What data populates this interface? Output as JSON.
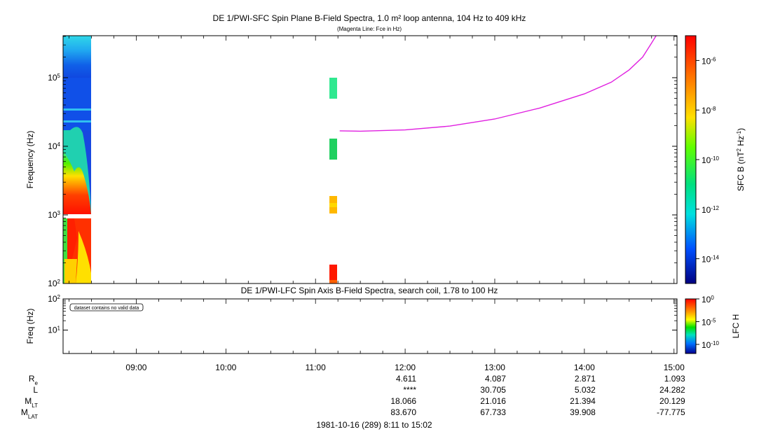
{
  "title": "DE 1/PWI-SFC  Spin Plane B-Field Spectra, 1.0 m² loop antenna, 104 Hz to 409 kHz",
  "subtitle": "(Magenta Line: Fce in Hz)",
  "lower_title": "DE 1/PWI-LFC  Spin Axis B-Field Spectra, search coil, 1.78 to 100 Hz",
  "no_data_label": "dataset contains no valid data",
  "date_label": "1981-10-16 (289) 8:11 to 15:02",
  "orbit_rows": [
    {
      "key": "re",
      "label": "R",
      "sub": "e",
      "values": [
        "4.611",
        "4.087",
        "2.871",
        "1.093"
      ]
    },
    {
      "key": "l",
      "label": "L",
      "sub": "",
      "values": [
        "****",
        "30.705",
        "5.032",
        "24.282"
      ]
    },
    {
      "key": "mlt",
      "label": "M",
      "sub": "LT",
      "values": [
        "18.066",
        "21.016",
        "21.394",
        "20.129"
      ]
    },
    {
      "key": "mlat",
      "label": "M",
      "sub": "LAT",
      "values": [
        "83.670",
        "67.733",
        "39.908",
        "-77.775"
      ]
    }
  ],
  "colors": {
    "fce_line": "#e020e0",
    "spectrogram_red": "#ff2000",
    "spectrogram_yellow": "#ffe000",
    "spectrogram_green": "#30e060",
    "spectrogram_blue": "#1060e8"
  },
  "chart_data": [
    {
      "type": "heatmap",
      "panel": "upper",
      "title": "DE 1/PWI-SFC  Spin Plane B-Field Spectra, 1.0 m² loop antenna, 104 Hz to 409 kHz",
      "xlabel": "",
      "ylabel": "Frequency (Hz)",
      "xlim": [
        "08:11",
        "15:02"
      ],
      "ylim": [
        100,
        409000
      ],
      "yscale": "log",
      "y_ticks": [
        {
          "value": 100,
          "base": "10",
          "exp": "2"
        },
        {
          "value": 1000,
          "base": "10",
          "exp": "3"
        },
        {
          "value": 10000,
          "base": "10",
          "exp": "4"
        },
        {
          "value": 100000,
          "base": "10",
          "exp": "5"
        }
      ],
      "colorbar": {
        "label": "SFC B (nT² Hz⁻¹)",
        "scale": "log",
        "range": [
          1e-15,
          1e-05
        ],
        "ticks": [
          {
            "value": 1e-06,
            "base": "10",
            "exp": "-6"
          },
          {
            "value": 1e-08,
            "base": "10",
            "exp": "-8"
          },
          {
            "value": 1e-10,
            "base": "10",
            "exp": "-10"
          },
          {
            "value": 1e-12,
            "base": "10",
            "exp": "-12"
          },
          {
            "value": 1e-14,
            "base": "10",
            "exp": "-14"
          }
        ]
      },
      "fce_line": {
        "name": "Fce in Hz",
        "time_hours": [
          11.27,
          11.5,
          12.0,
          12.5,
          13.0,
          13.5,
          14.0,
          14.3,
          14.5,
          14.65,
          14.75,
          14.8
        ],
        "freq_hz": [
          16800,
          16600,
          17300,
          19700,
          25000,
          36000,
          58000,
          86000,
          130000,
          200000,
          320000,
          409000
        ]
      }
    },
    {
      "type": "heatmap",
      "panel": "lower",
      "title": "DE 1/PWI-LFC  Spin Axis B-Field Spectra, search coil, 1.78 to 100 Hz",
      "xlabel": "",
      "ylabel": "Freq (Hz)",
      "xlim": [
        "08:11",
        "15:02"
      ],
      "ylim": [
        1.78,
        100
      ],
      "yscale": "log",
      "y_ticks": [
        {
          "value": 10,
          "base": "10",
          "exp": "1"
        },
        {
          "value": 100,
          "base": "10",
          "exp": "2"
        }
      ],
      "colorbar": {
        "label": "LFC H",
        "scale": "log",
        "range": [
          1e-12,
          1
        ],
        "ticks": [
          {
            "value": 1,
            "base": "10",
            "exp": "0"
          },
          {
            "value": 1e-05,
            "base": "10",
            "exp": "-5"
          },
          {
            "value": 1e-10,
            "base": "10",
            "exp": "-10"
          }
        ]
      },
      "x_ticks": [
        "09:00",
        "10:00",
        "11:00",
        "12:00",
        "13:00",
        "14:00",
        "15:00"
      ]
    }
  ]
}
